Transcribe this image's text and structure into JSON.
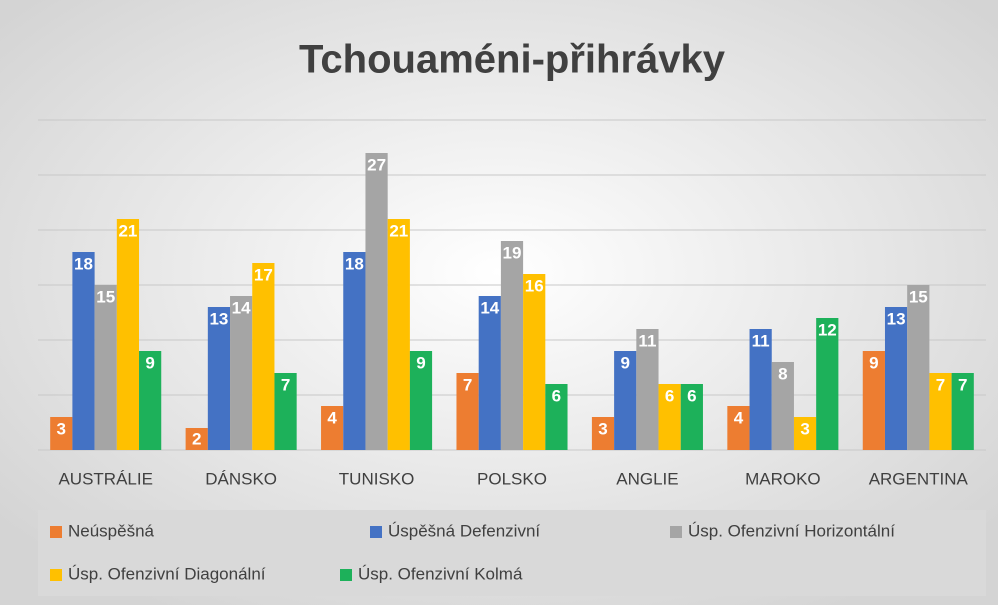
{
  "chart_data": {
    "type": "bar",
    "title": "Tchouaméni-přihrávky",
    "categories": [
      "AUSTRÁLIE",
      "DÁNSKO",
      "TUNISKO",
      "POLSKO",
      "ANGLIE",
      "MAROKO",
      "ARGENTINA"
    ],
    "series": [
      {
        "name": "Neúspěšná",
        "color": "#ED7D31",
        "values": [
          3,
          2,
          4,
          7,
          3,
          4,
          9
        ]
      },
      {
        "name": "Úspěšná Defenzivní",
        "color": "#4472C4",
        "values": [
          18,
          13,
          18,
          14,
          9,
          11,
          13
        ]
      },
      {
        "name": "Úsp. Ofenzivní Horizontální",
        "color": "#A5A5A5",
        "values": [
          15,
          14,
          27,
          19,
          11,
          8,
          15
        ]
      },
      {
        "name": "Úsp. Ofenzivní Diagonální",
        "color": "#FFC000",
        "values": [
          21,
          17,
          21,
          16,
          6,
          3,
          7
        ]
      },
      {
        "name": "Úsp. Ofenzivní Kolmá",
        "color": "#1DB15A",
        "values": [
          9,
          7,
          9,
          6,
          6,
          12,
          7
        ]
      }
    ],
    "ylim": [
      0,
      30
    ],
    "yticks": [
      0,
      5,
      10,
      15,
      20,
      25,
      30
    ],
    "grid": true,
    "data_labels": true,
    "legend": "bottom"
  }
}
